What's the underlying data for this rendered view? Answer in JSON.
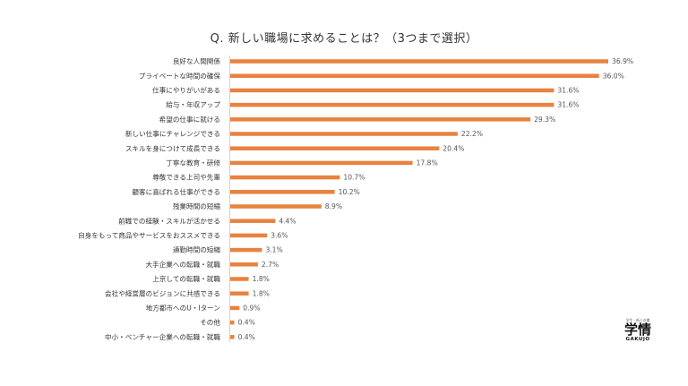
{
  "chart_data": {
    "type": "bar",
    "orientation": "horizontal",
    "title": "Q. 新しい職場に求めることは？（3つまで選択）",
    "categories": [
      "良好な人間関係",
      "プライベートな時間の確保",
      "仕事にやりがいがある",
      "給与・年収アップ",
      "希望の仕事に就ける",
      "新しい仕事にチャレンジできる",
      "スキルを身につけて成長できる",
      "丁寧な教育・研修",
      "尊敬できる上司や先輩",
      "顧客に喜ばれる仕事ができる",
      "残業時間の短縮",
      "前職での経験・スキルが活かせる",
      "自身をもって商品やサービスをおススメできる",
      "通勤時間の短縮",
      "大手企業への転職・就職",
      "上京しての転職・就職",
      "会社や経営層のビジョンに共感できる",
      "地方都市へのU・Iターン",
      "その他",
      "中小・ベンチャー企業への転職・就職"
    ],
    "values": [
      36.9,
      36.0,
      31.6,
      31.6,
      29.3,
      22.2,
      20.4,
      17.8,
      10.7,
      10.2,
      8.9,
      4.4,
      3.6,
      3.1,
      2.7,
      1.8,
      1.8,
      0.9,
      0.4,
      0.4
    ],
    "value_labels": [
      "36.9%",
      "36.0%",
      "31.6%",
      "31.6%",
      "29.3%",
      "22.2%",
      "20.4%",
      "17.8%",
      "10.7%",
      "10.2%",
      "8.9%",
      "4.4%",
      "3.6%",
      "3.1%",
      "2.7%",
      "1.8%",
      "1.8%",
      "0.9%",
      "0.4%",
      "0.4%"
    ],
    "unit": "%",
    "bar_color": "#e8823f",
    "grid": false,
    "legend": "none"
  },
  "logo": {
    "tagline": "学生・新人の職",
    "mark": "学情",
    "sub": "GAKUJO"
  }
}
